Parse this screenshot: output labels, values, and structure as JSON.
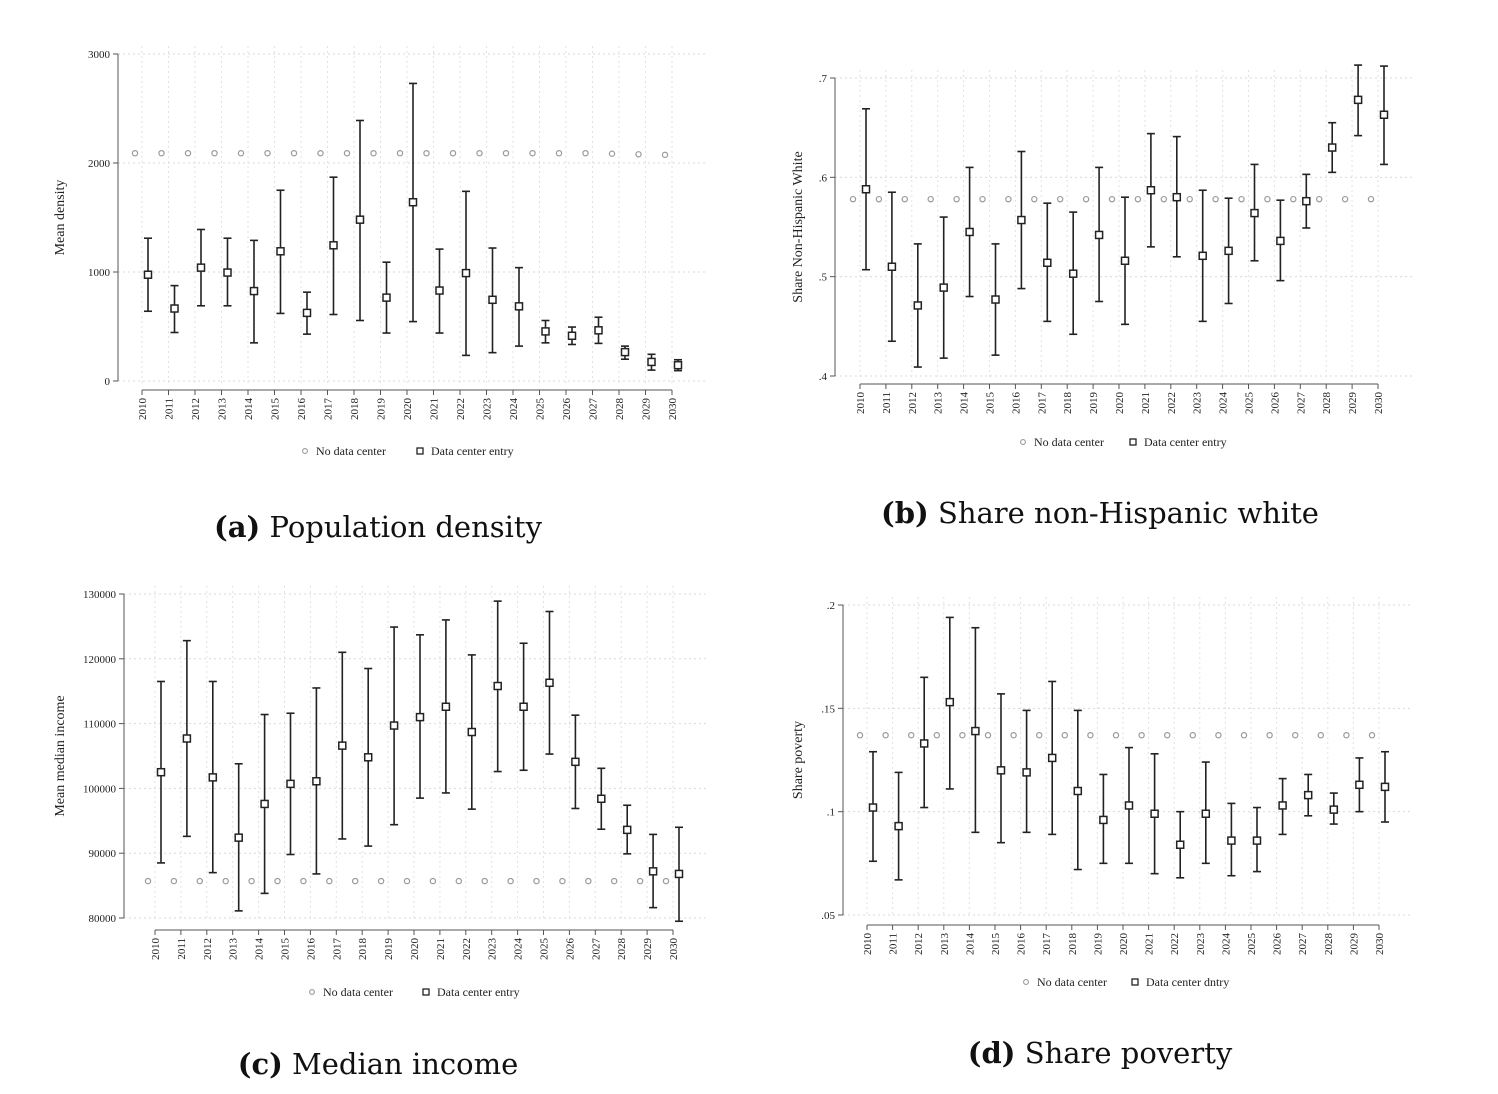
{
  "chart_data": [
    {
      "id": "a",
      "type": "scatter",
      "caption_label": "(a)",
      "caption_text": "Population density",
      "ylabel": "Mean density",
      "ylim": [
        0,
        3000
      ],
      "yticks": [
        0,
        1000,
        2000,
        3000
      ],
      "ytick_labels": [
        "0",
        "1000",
        "2000",
        "3000"
      ],
      "x": [
        "2010",
        "2011",
        "2012",
        "2013",
        "2014",
        "2015",
        "2016",
        "2017",
        "2018",
        "2019",
        "2020",
        "2021",
        "2022",
        "2023",
        "2024",
        "2025",
        "2026",
        "2027",
        "2028",
        "2029",
        "2030"
      ],
      "grid": true,
      "legend_position": "bottom",
      "series": [
        {
          "name": "No data center",
          "marker": "circle",
          "color": "#9a9a9a",
          "values": [
            2090,
            2090,
            2090,
            2090,
            2090,
            2090,
            2090,
            2090,
            2090,
            2090,
            2090,
            2090,
            2090,
            2090,
            2090,
            2090,
            2090,
            2090,
            2085,
            2080,
            2075
          ]
        },
        {
          "name": "Data center entry",
          "marker": "square",
          "color": "#222222",
          "values": [
            975,
            665,
            1040,
            995,
            825,
            1190,
            625,
            1245,
            1480,
            765,
            1640,
            830,
            990,
            745,
            685,
            455,
            415,
            465,
            265,
            175,
            145
          ],
          "lower": [
            640,
            445,
            690,
            690,
            350,
            620,
            430,
            610,
            555,
            440,
            545,
            440,
            235,
            260,
            320,
            350,
            335,
            345,
            200,
            100,
            95
          ],
          "upper": [
            1310,
            875,
            1390,
            1310,
            1290,
            1750,
            815,
            1870,
            2390,
            1090,
            2730,
            1210,
            1740,
            1220,
            1040,
            555,
            495,
            585,
            320,
            245,
            195
          ]
        }
      ]
    },
    {
      "id": "b",
      "type": "scatter",
      "caption_label": "(b)",
      "caption_text": "Share non-Hispanic white",
      "ylabel": "Share Non-Hispanic White",
      "ylim": [
        0.4,
        0.7
      ],
      "yticks": [
        0.4,
        0.5,
        0.6,
        0.7
      ],
      "ytick_labels": [
        ".4",
        ".5",
        ".6",
        ".7"
      ],
      "x": [
        "2010",
        "2011",
        "2012",
        "2013",
        "2014",
        "2015",
        "2016",
        "2017",
        "2018",
        "2019",
        "2020",
        "2021",
        "2022",
        "2023",
        "2024",
        "2025",
        "2026",
        "2027",
        "2028",
        "2029",
        "2030"
      ],
      "grid": true,
      "legend_position": "bottom",
      "series": [
        {
          "name": "No data center",
          "marker": "circle",
          "color": "#9a9a9a",
          "values": [
            0.578,
            0.578,
            0.578,
            0.578,
            0.578,
            0.578,
            0.578,
            0.578,
            0.578,
            0.578,
            0.578,
            0.578,
            0.578,
            0.578,
            0.578,
            0.578,
            0.578,
            0.578,
            0.578,
            0.578,
            0.578
          ]
        },
        {
          "name": "Data center entry",
          "marker": "square",
          "color": "#222222",
          "values": [
            0.588,
            0.51,
            0.471,
            0.489,
            0.545,
            0.477,
            0.557,
            0.514,
            0.503,
            0.542,
            0.516,
            0.587,
            0.58,
            0.521,
            0.526,
            0.564,
            0.536,
            0.576,
            0.63,
            0.678,
            0.663
          ],
          "lower": [
            0.507,
            0.435,
            0.409,
            0.418,
            0.48,
            0.421,
            0.488,
            0.455,
            0.442,
            0.475,
            0.452,
            0.53,
            0.52,
            0.455,
            0.473,
            0.516,
            0.496,
            0.549,
            0.605,
            0.642,
            0.613
          ],
          "upper": [
            0.669,
            0.585,
            0.533,
            0.56,
            0.61,
            0.533,
            0.626,
            0.574,
            0.565,
            0.61,
            0.58,
            0.644,
            0.641,
            0.587,
            0.579,
            0.613,
            0.577,
            0.603,
            0.655,
            0.713,
            0.712
          ]
        }
      ]
    },
    {
      "id": "c",
      "type": "scatter",
      "caption_label": "(c)",
      "caption_text": "Median income",
      "ylabel": "Mean median income",
      "ylim": [
        80000,
        130000
      ],
      "yticks": [
        80000,
        90000,
        100000,
        110000,
        120000,
        130000
      ],
      "ytick_labels": [
        "80000",
        "90000",
        "100000",
        "110000",
        "120000",
        "130000"
      ],
      "x": [
        "2010",
        "2011",
        "2012",
        "2013",
        "2014",
        "2015",
        "2016",
        "2017",
        "2018",
        "2019",
        "2020",
        "2021",
        "2022",
        "2023",
        "2024",
        "2025",
        "2026",
        "2027",
        "2028",
        "2029",
        "2030"
      ],
      "grid": true,
      "legend_position": "bottom",
      "series": [
        {
          "name": "No data center",
          "marker": "circle",
          "color": "#9a9a9a",
          "values": [
            85700,
            85700,
            85700,
            85700,
            85700,
            85700,
            85700,
            85700,
            85700,
            85700,
            85700,
            85700,
            85700,
            85700,
            85700,
            85700,
            85700,
            85700,
            85700,
            85700,
            85700
          ]
        },
        {
          "name": "Data center entry",
          "marker": "square",
          "color": "#222222",
          "values": [
            102500,
            107700,
            101700,
            92400,
            97600,
            100700,
            101100,
            106600,
            104800,
            109700,
            111000,
            112600,
            108700,
            115800,
            112600,
            116300,
            104100,
            98400,
            93600,
            87200,
            86800
          ],
          "lower": [
            88500,
            92600,
            87000,
            81100,
            83800,
            89800,
            86800,
            92200,
            91100,
            94400,
            98500,
            99300,
            96800,
            102600,
            102800,
            105300,
            96900,
            93700,
            89900,
            81600,
            79500
          ],
          "upper": [
            116500,
            122800,
            116500,
            103800,
            111400,
            111600,
            115500,
            121000,
            118500,
            124900,
            123700,
            126000,
            120600,
            128900,
            122400,
            127300,
            111300,
            103100,
            97400,
            92900,
            94000
          ]
        }
      ]
    },
    {
      "id": "d",
      "type": "scatter",
      "caption_label": "(d)",
      "caption_text": "Share poverty",
      "ylabel": "Share poverty",
      "ylim": [
        0.05,
        0.2
      ],
      "yticks": [
        0.05,
        0.1,
        0.15,
        0.2
      ],
      "ytick_labels": [
        ".05",
        ".1",
        ".15",
        ".2"
      ],
      "x": [
        "2010",
        "2011",
        "2012",
        "2013",
        "2014",
        "2015",
        "2016",
        "2017",
        "2018",
        "2019",
        "2020",
        "2021",
        "2022",
        "2023",
        "2024",
        "2025",
        "2026",
        "2027",
        "2028",
        "2029",
        "2030"
      ],
      "grid": true,
      "legend_position": "bottom",
      "series": [
        {
          "name": "No data center",
          "marker": "circle",
          "color": "#9a9a9a",
          "values": [
            0.137,
            0.137,
            0.137,
            0.137,
            0.137,
            0.137,
            0.137,
            0.137,
            0.137,
            0.137,
            0.137,
            0.137,
            0.137,
            0.137,
            0.137,
            0.137,
            0.137,
            0.137,
            0.137,
            0.137,
            0.137
          ]
        },
        {
          "name": "Data center dntry",
          "marker": "square",
          "color": "#222222",
          "values": [
            0.102,
            0.093,
            0.133,
            0.153,
            0.139,
            0.12,
            0.119,
            0.126,
            0.11,
            0.096,
            0.103,
            0.099,
            0.084,
            0.099,
            0.086,
            0.086,
            0.103,
            0.108,
            0.101,
            0.113,
            0.112
          ],
          "lower": [
            0.076,
            0.067,
            0.102,
            0.111,
            0.09,
            0.085,
            0.09,
            0.089,
            0.072,
            0.075,
            0.075,
            0.07,
            0.068,
            0.075,
            0.069,
            0.071,
            0.089,
            0.098,
            0.094,
            0.1,
            0.095
          ],
          "upper": [
            0.129,
            0.119,
            0.165,
            0.194,
            0.189,
            0.157,
            0.149,
            0.163,
            0.149,
            0.118,
            0.131,
            0.128,
            0.1,
            0.124,
            0.104,
            0.102,
            0.116,
            0.118,
            0.109,
            0.126,
            0.129
          ]
        }
      ]
    }
  ]
}
